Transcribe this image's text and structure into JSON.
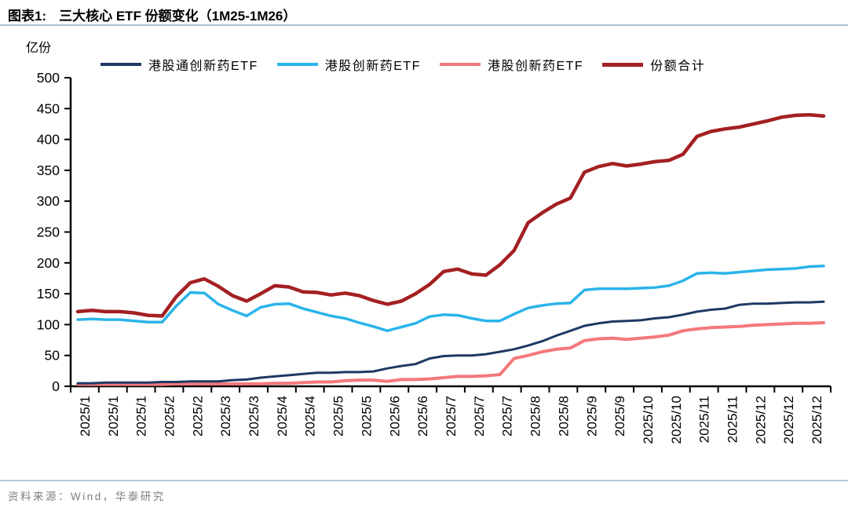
{
  "header": {
    "tag": "图表1:",
    "title": "三大核心 ETF 份额变化（1M25-1M26）"
  },
  "chart": {
    "unit_label": "亿份"
  },
  "chart_data": {
    "type": "line",
    "title": "三大核心 ETF 份额变化（1M25-1M26）",
    "ylabel": "亿份",
    "ylim": [
      0,
      500
    ],
    "ytick_step": 50,
    "grid": false,
    "legend_position": "top",
    "x_tick_labels": [
      "2025/1",
      "2025/1",
      "2025/1",
      "2025/2",
      "2025/2",
      "2025/3",
      "2025/3",
      "2025/4",
      "2025/4",
      "2025/5",
      "2025/5",
      "2025/6",
      "2025/6",
      "2025/7",
      "2025/7",
      "2025/7",
      "2025/8",
      "2025/8",
      "2025/9",
      "2025/9",
      "2025/10",
      "2025/10",
      "2025/11",
      "2025/11",
      "2025/12",
      "2025/12",
      "2025/12"
    ],
    "points_per_label": 2,
    "series": [
      {
        "name": "港股通创新药ETF",
        "color": "#1f3864",
        "stroke_width": 3,
        "values": [
          5,
          5,
          6,
          6,
          6,
          6,
          7,
          7,
          8,
          8,
          8,
          10,
          11,
          14,
          16,
          18,
          20,
          22,
          22,
          23,
          23,
          24,
          29,
          33,
          36,
          45,
          49,
          50,
          50,
          52,
          56,
          60,
          66,
          73,
          82,
          90,
          98,
          102,
          105,
          106,
          107,
          110,
          112,
          116,
          121,
          124,
          126,
          132,
          134,
          134,
          135,
          136,
          136,
          137
        ]
      },
      {
        "name": "港股创新药ETF",
        "color": "#2bb4ea",
        "stroke_width": 3.5,
        "values": [
          108,
          109,
          108,
          108,
          106,
          104,
          104,
          130,
          152,
          151,
          133,
          123,
          114,
          128,
          133,
          134,
          126,
          120,
          114,
          110,
          103,
          97,
          90,
          96,
          102,
          113,
          116,
          115,
          110,
          106,
          106,
          117,
          127,
          131,
          134,
          135,
          156,
          158,
          158,
          158,
          159,
          160,
          163,
          171,
          183,
          184,
          183,
          185,
          187,
          189,
          190,
          191,
          194,
          195
        ]
      },
      {
        "name": "港股创新药ETF",
        "color": "#f4787b",
        "stroke_width": 4,
        "values": [
          3,
          3,
          3,
          3,
          3,
          3,
          3,
          4,
          4,
          4,
          4,
          4,
          4,
          4,
          5,
          5,
          6,
          7,
          7,
          9,
          10,
          10,
          8,
          11,
          11,
          12,
          14,
          16,
          16,
          17,
          19,
          45,
          50,
          56,
          60,
          62,
          74,
          77,
          78,
          76,
          78,
          80,
          83,
          90,
          93,
          95,
          96,
          97,
          99,
          100,
          101,
          102,
          102,
          103
        ]
      },
      {
        "name": "份额合计",
        "color": "#a42022",
        "stroke_width": 4.5,
        "values": [
          121,
          123,
          121,
          121,
          119,
          115,
          114,
          145,
          168,
          174,
          162,
          147,
          138,
          150,
          163,
          161,
          153,
          152,
          148,
          151,
          147,
          139,
          133,
          138,
          150,
          165,
          186,
          190,
          182,
          180,
          197,
          220,
          265,
          281,
          295,
          305,
          347,
          356,
          361,
          357,
          360,
          364,
          366,
          376,
          405,
          413,
          417,
          420,
          425,
          430,
          436,
          439,
          440,
          438
        ]
      }
    ]
  },
  "footer": {
    "source": "资料来源：Wind，华泰研究"
  }
}
